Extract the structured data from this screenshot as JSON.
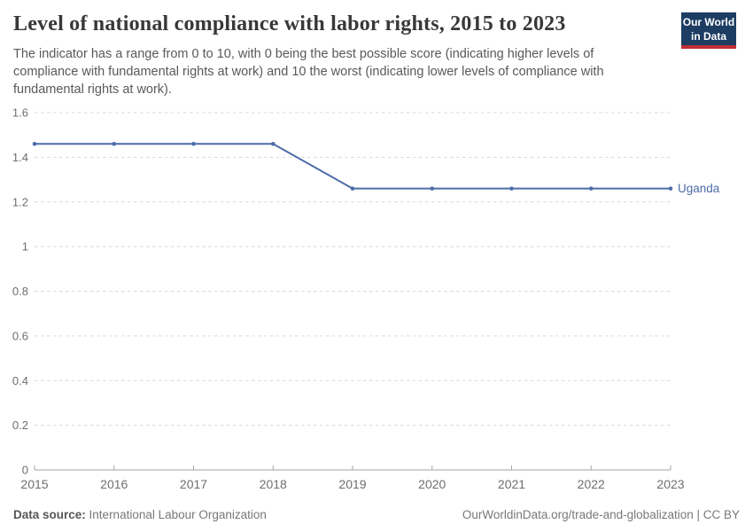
{
  "header": {
    "title": "Level of national compliance with labor rights, 2015 to 2023",
    "subtitle": "The indicator has a range from 0 to 10, with 0 being the best possible score (indicating higher levels of compliance with fundamental rights at work) and 10 the worst (indicating lower levels of compliance with fundamental rights at work).",
    "logo": {
      "line1": "Our World",
      "line2": "in Data"
    }
  },
  "chart_data": {
    "type": "line",
    "title": "Level of national compliance with labor rights, 2015 to 2023",
    "x": [
      2015,
      2016,
      2017,
      2018,
      2019,
      2020,
      2021,
      2022,
      2023
    ],
    "series": [
      {
        "name": "Uganda",
        "values": [
          1.46,
          1.46,
          1.46,
          1.46,
          1.26,
          1.26,
          1.26,
          1.26,
          1.26
        ]
      }
    ],
    "ylim": [
      0,
      1.6
    ],
    "yticks": [
      "0",
      "0.2",
      "0.4",
      "0.6",
      "0.8",
      "1",
      "1.2",
      "1.4",
      "1.6"
    ],
    "xlabel": "",
    "ylabel": "",
    "grid": "horizontal-dashed",
    "legend": "line-end-label"
  },
  "footer": {
    "source_label": "Data source:",
    "source_value": "International Labour Organization",
    "credit": "OurWorldinData.org/trade-and-globalization | CC BY"
  },
  "colors": {
    "line": "#4c6ca8",
    "grid": "#d9d9d9",
    "axis": "#a5a5a5",
    "tick_text": "#6e6e6e",
    "title": "#383838",
    "subtitle": "#595959",
    "footer": "#787878",
    "logo_bg": "#1d3d63",
    "logo_bar": "#bf3036"
  }
}
